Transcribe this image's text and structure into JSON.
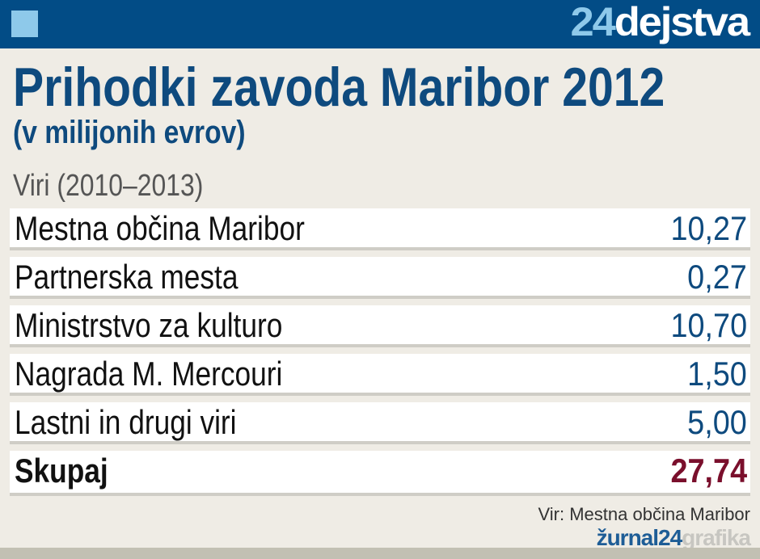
{
  "header": {
    "logo_number": "24",
    "logo_word": "dejstva",
    "accent": "#024c86"
  },
  "title": "Prihodki zavoda Maribor 2012",
  "subtitle": "(v milijonih evrov)",
  "chart_data": {
    "type": "table",
    "title": "Prihodki zavoda Maribor 2012",
    "subtitle": "(v milijonih evrov)",
    "column_header": "Viri (2010–2013)",
    "rows": [
      {
        "label": "Mestna občina Maribor",
        "value": "10,27"
      },
      {
        "label": "Partnerska mesta",
        "value": "0,27"
      },
      {
        "label": "Ministrstvo za kulturo",
        "value": "10,70"
      },
      {
        "label": "Nagrada M. Mercouri",
        "value": "1,50"
      },
      {
        "label": "Lastni in drugi viri",
        "value": "5,00"
      }
    ],
    "total": {
      "label": "Skupaj",
      "value": "27,74"
    }
  },
  "footer": {
    "source": "Vir: Mestna občina Maribor",
    "brand_a": "žurnal24",
    "brand_b": "grafika"
  }
}
